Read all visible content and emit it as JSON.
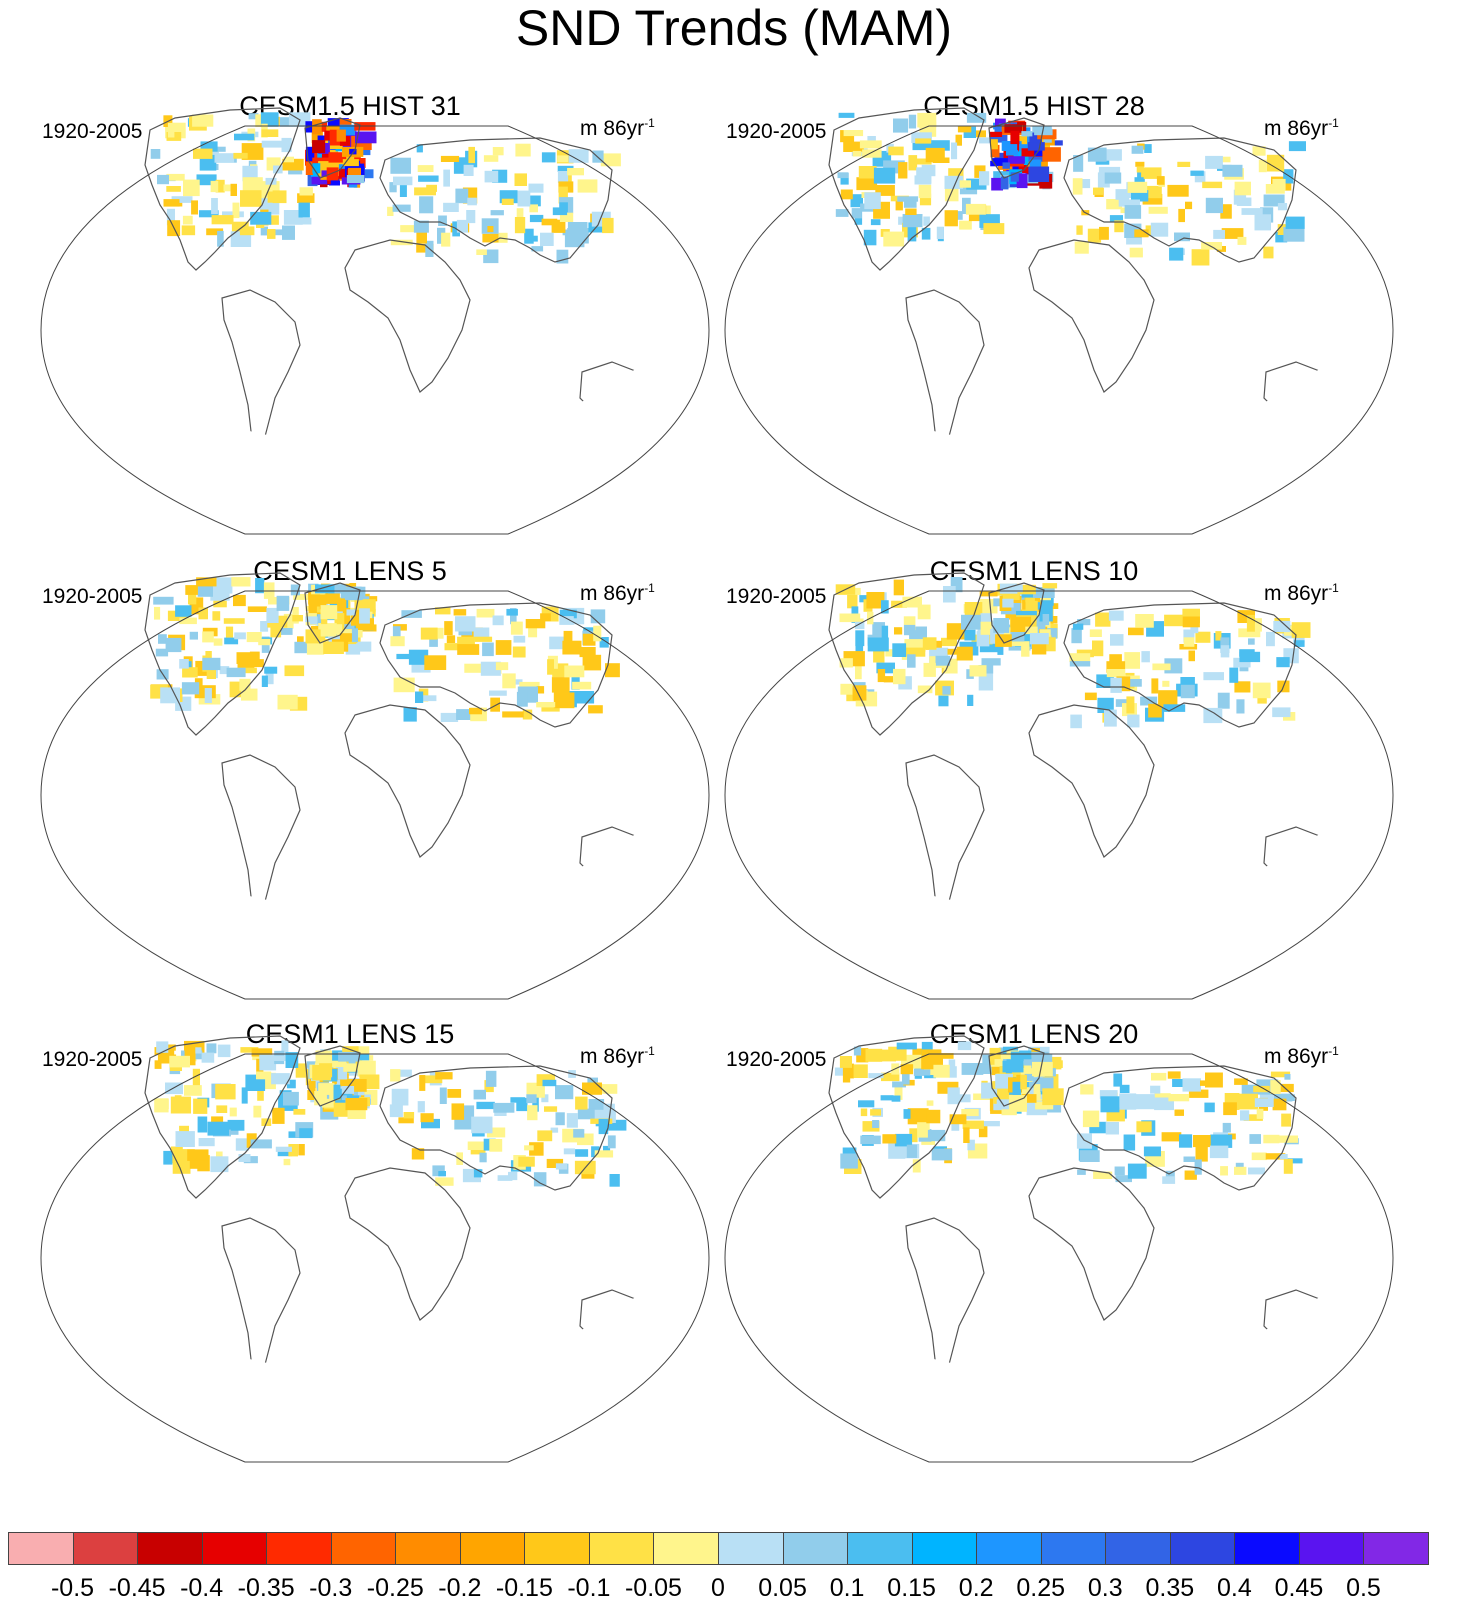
{
  "figure": {
    "title": "SND Trends (MAM)",
    "panels": [
      {
        "id": "p1",
        "title": "CESM1.5 HIST 31",
        "period": "1920-2005",
        "units_base": "m 86yr",
        "units_exp": "-1",
        "variant": "strong"
      },
      {
        "id": "p2",
        "title": "CESM1.5 HIST 28",
        "period": "1920-2005",
        "units_base": "m 86yr",
        "units_exp": "-1",
        "variant": "strong"
      },
      {
        "id": "p3",
        "title": "CESM1 LENS 5",
        "period": "1920-2005",
        "units_base": "m 86yr",
        "units_exp": "-1",
        "variant": "weak"
      },
      {
        "id": "p4",
        "title": "CESM1 LENS 10",
        "period": "1920-2005",
        "units_base": "m 86yr",
        "units_exp": "-1",
        "variant": "weak"
      },
      {
        "id": "p5",
        "title": "CESM1 LENS 15",
        "period": "1920-2005",
        "units_base": "m 86yr",
        "units_exp": "-1",
        "variant": "weak"
      },
      {
        "id": "p6",
        "title": "CESM1 LENS 20",
        "period": "1920-2005",
        "units_base": "m 86yr",
        "units_exp": "-1",
        "variant": "weak"
      }
    ]
  },
  "colorbar": {
    "labels": [
      "-0.5",
      "-0.45",
      "-0.4",
      "-0.35",
      "-0.3",
      "-0.25",
      "-0.2",
      "-0.15",
      "-0.1",
      "-0.05",
      "0",
      "0.05",
      "0.1",
      "0.15",
      "0.2",
      "0.25",
      "0.3",
      "0.35",
      "0.4",
      "0.45",
      "0.5"
    ],
    "colors": [
      "#f9aeb0",
      "#dc4040",
      "#c80000",
      "#e60000",
      "#ff2a00",
      "#ff6400",
      "#ff8c00",
      "#ffa500",
      "#ffc819",
      "#ffe146",
      "#fff58c",
      "#b9e0f5",
      "#91cdeb",
      "#4bbef0",
      "#00b4ff",
      "#1e96ff",
      "#2d78f0",
      "#3264e6",
      "#2d46e1",
      "#0a0aff",
      "#5a14f0",
      "#8228e6"
    ]
  }
}
